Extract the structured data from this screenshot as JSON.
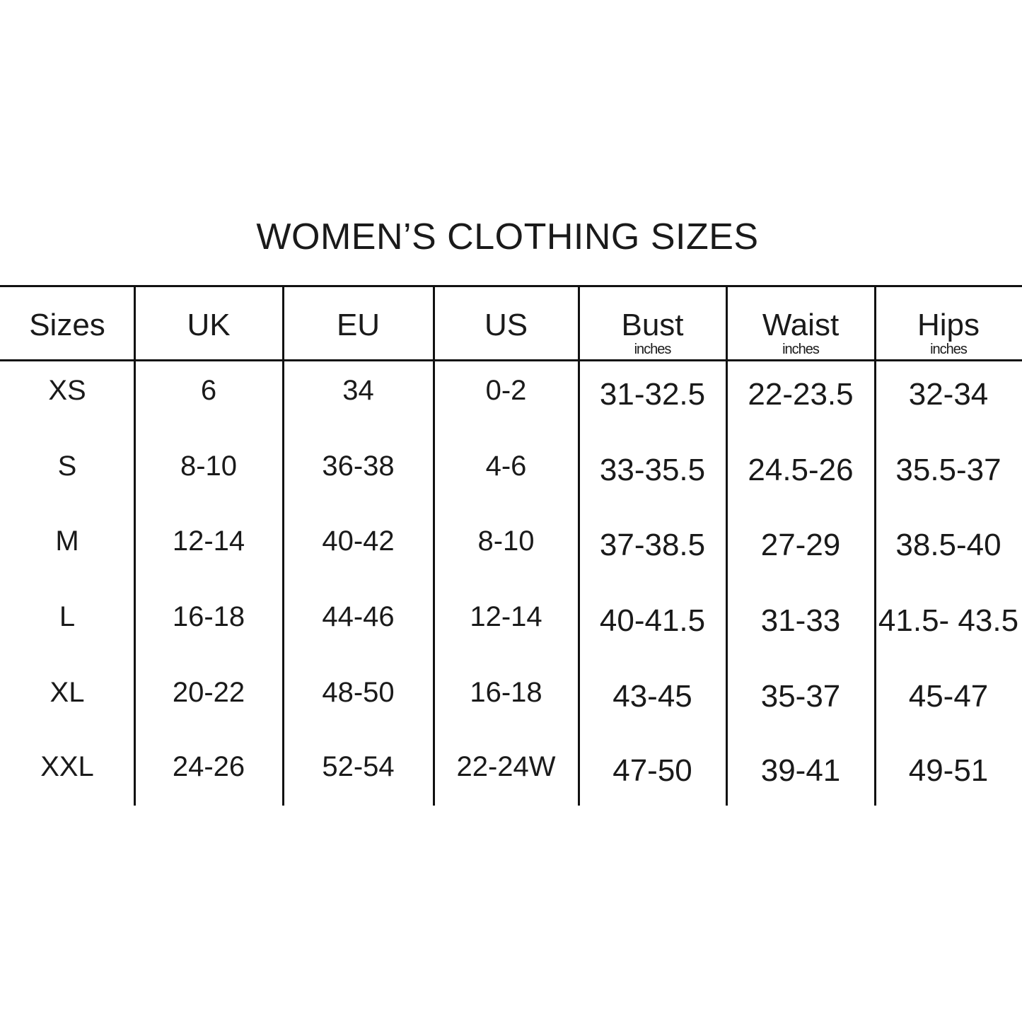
{
  "title": "WOMEN’S CLOTHING SIZES",
  "columns": [
    {
      "label": "Sizes",
      "unit": ""
    },
    {
      "label": "UK",
      "unit": ""
    },
    {
      "label": "EU",
      "unit": ""
    },
    {
      "label": "US",
      "unit": ""
    },
    {
      "label": "Bust",
      "unit": "inches"
    },
    {
      "label": "Waist",
      "unit": "inches"
    },
    {
      "label": "Hips",
      "unit": "inches"
    }
  ],
  "rows": [
    [
      "XS",
      "6",
      "34",
      "0-2",
      "31-32.5",
      "22-23.5",
      "32-34"
    ],
    [
      "S",
      "8-10",
      "36-38",
      "4-6",
      "33-35.5",
      "24.5-26",
      "35.5-37"
    ],
    [
      "M",
      "12-14",
      "40-42",
      "8-10",
      "37-38.5",
      "27-29",
      "38.5-40"
    ],
    [
      "L",
      "16-18",
      "44-46",
      "12-14",
      "40-41.5",
      "31-33",
      "41.5- 43.5"
    ],
    [
      "XL",
      "20-22",
      "48-50",
      "16-18",
      "43-45",
      "35-37",
      "45-47"
    ],
    [
      "XXL",
      "24-26",
      "52-54",
      "22-24W",
      "47-50",
      "39-41",
      "49-51"
    ]
  ]
}
